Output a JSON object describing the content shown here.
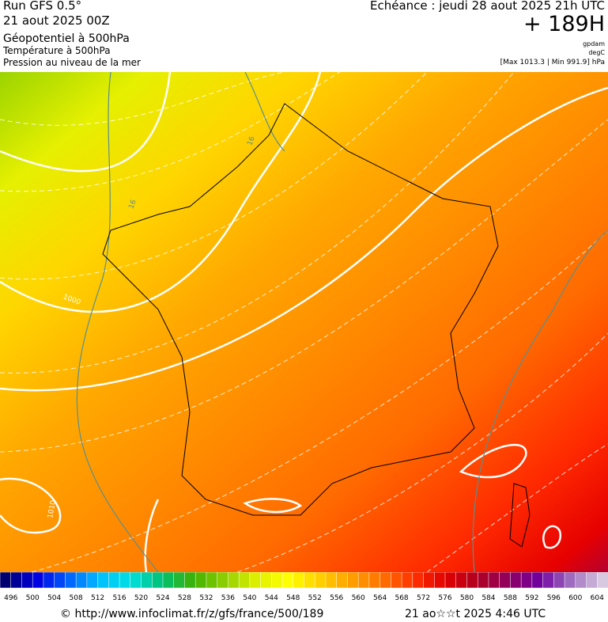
{
  "header": {
    "title": "Run GFS 0.5°",
    "run_date": "21 aout 2025 00Z",
    "field_1": "Géopotentiel à 500hPa",
    "field_2": "Température à 500hPa",
    "field_3": "Pression au niveau de la mer",
    "echeance": "Echéance : jeudi 28 aout 2025 21h UTC",
    "lead_time": "+ 189H",
    "unit_1": "gpdam",
    "unit_2": "degC",
    "pressure_range": "[Max 1013.3 | Min 991.9] hPa"
  },
  "map": {
    "contour_labels": [
      "16",
      "16",
      "1000",
      "1010"
    ]
  },
  "scale": {
    "labels": [
      "496",
      "500",
      "504",
      "508",
      "512",
      "516",
      "520",
      "524",
      "528",
      "532",
      "536",
      "540",
      "544",
      "548",
      "552",
      "556",
      "560",
      "564",
      "568",
      "572",
      "576",
      "580",
      "584",
      "588",
      "592",
      "596",
      "600",
      "604"
    ]
  },
  "footer": {
    "url": "© http://www.infoclimat.fr/z/gfs/france/500/189",
    "generated": "21 ao☆☆t 2025  4:46 UTC"
  }
}
